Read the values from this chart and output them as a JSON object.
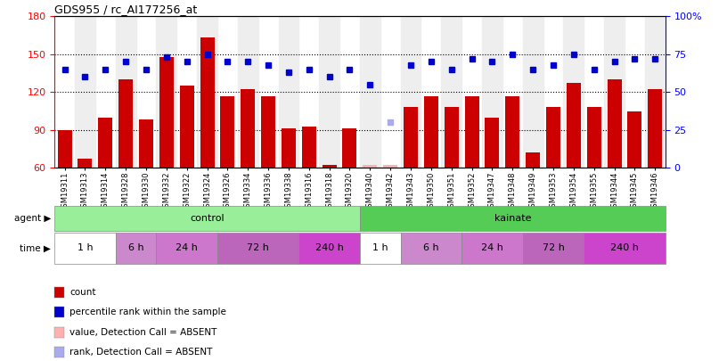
{
  "title": "GDS955 / rc_AI177256_at",
  "samples": [
    "GSM19311",
    "GSM19313",
    "GSM19314",
    "GSM19328",
    "GSM19330",
    "GSM19332",
    "GSM19322",
    "GSM19324",
    "GSM19326",
    "GSM19334",
    "GSM19336",
    "GSM19338",
    "GSM19316",
    "GSM19318",
    "GSM19320",
    "GSM19340",
    "GSM19342",
    "GSM19343",
    "GSM19350",
    "GSM19351",
    "GSM19352",
    "GSM19347",
    "GSM19348",
    "GSM19349",
    "GSM19353",
    "GSM19354",
    "GSM19355",
    "GSM19344",
    "GSM19345",
    "GSM19346"
  ],
  "bar_values": [
    90,
    67,
    100,
    130,
    98,
    148,
    125,
    163,
    117,
    122,
    117,
    91,
    93,
    62,
    91,
    62,
    62,
    108,
    117,
    108,
    117,
    100,
    117,
    72,
    108,
    127,
    108,
    130,
    105,
    122
  ],
  "bar_absent": [
    false,
    false,
    false,
    false,
    false,
    false,
    false,
    false,
    false,
    false,
    false,
    false,
    false,
    false,
    false,
    true,
    true,
    false,
    false,
    false,
    false,
    false,
    false,
    false,
    false,
    false,
    false,
    false,
    false,
    false
  ],
  "dot_values": [
    65,
    60,
    65,
    70,
    65,
    73,
    70,
    75,
    70,
    70,
    68,
    63,
    65,
    60,
    65,
    55,
    30,
    68,
    70,
    65,
    72,
    70,
    75,
    65,
    68,
    75,
    65,
    70,
    72,
    72
  ],
  "dot_absent": [
    false,
    false,
    false,
    false,
    false,
    false,
    false,
    false,
    false,
    false,
    false,
    false,
    false,
    false,
    false,
    false,
    true,
    false,
    false,
    false,
    false,
    false,
    false,
    false,
    false,
    false,
    false,
    false,
    false,
    false
  ],
  "ylim_left": [
    60,
    180
  ],
  "ylim_right": [
    0,
    100
  ],
  "yticks_left": [
    60,
    90,
    120,
    150,
    180
  ],
  "yticks_right": [
    0,
    25,
    50,
    75,
    100
  ],
  "ytick_labels_right": [
    "0",
    "25",
    "50",
    "75",
    "100%"
  ],
  "bar_color": "#cc0000",
  "bar_absent_color": "#ffb0b0",
  "dot_color": "#0000cc",
  "dot_absent_color": "#aaaaee",
  "agent_groups": [
    {
      "label": "control",
      "color": "#99ee99",
      "start": 0,
      "end": 15
    },
    {
      "label": "kainate",
      "color": "#55cc55",
      "start": 15,
      "end": 30
    }
  ],
  "time_groups": [
    {
      "label": "1 h",
      "color": "#ffffff",
      "start": 0,
      "end": 3
    },
    {
      "label": "6 h",
      "color": "#cc88cc",
      "start": 3,
      "end": 5
    },
    {
      "label": "24 h",
      "color": "#cc77cc",
      "start": 5,
      "end": 8
    },
    {
      "label": "72 h",
      "color": "#bb66bb",
      "start": 8,
      "end": 12
    },
    {
      "label": "240 h",
      "color": "#cc44cc",
      "start": 12,
      "end": 15
    },
    {
      "label": "1 h",
      "color": "#ffffff",
      "start": 15,
      "end": 17
    },
    {
      "label": "6 h",
      "color": "#cc88cc",
      "start": 17,
      "end": 20
    },
    {
      "label": "24 h",
      "color": "#cc77cc",
      "start": 20,
      "end": 23
    },
    {
      "label": "72 h",
      "color": "#bb66bb",
      "start": 23,
      "end": 26
    },
    {
      "label": "240 h",
      "color": "#cc44cc",
      "start": 26,
      "end": 30
    }
  ],
  "legend_items": [
    {
      "label": "count",
      "color": "#cc0000"
    },
    {
      "label": "percentile rank within the sample",
      "color": "#0000cc"
    },
    {
      "label": "value, Detection Call = ABSENT",
      "color": "#ffb0b0"
    },
    {
      "label": "rank, Detection Call = ABSENT",
      "color": "#aaaaee"
    }
  ],
  "bg_color": "#ffffff"
}
